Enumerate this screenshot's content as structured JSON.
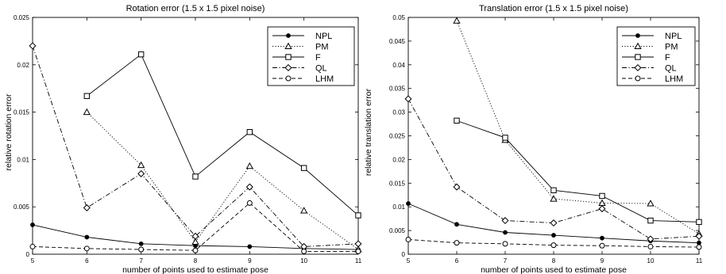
{
  "chart_data": [
    {
      "type": "line",
      "title": "Rotation error (1.5 x 1.5 pixel noise)",
      "xlabel": "number of points used to estimate pose",
      "ylabel": "relative rotation error",
      "xlim": [
        5,
        11
      ],
      "ylim": [
        0,
        0.025
      ],
      "xticks": [
        "5",
        "6",
        "7",
        "8",
        "9",
        "10",
        "11"
      ],
      "yticks": [
        "0",
        "0.005",
        "0.01",
        "0.015",
        "0.02",
        "0.025"
      ],
      "grid": false,
      "legend_position": "top-right",
      "series": [
        {
          "name": "NPL",
          "x": [
            5,
            6,
            7,
            8,
            9,
            10,
            11
          ],
          "values": [
            0.0031,
            0.0018,
            0.0011,
            0.0009,
            0.0008,
            0.0006,
            0.0005
          ]
        },
        {
          "name": "PM",
          "x": [
            6,
            7,
            8,
            9,
            10,
            11
          ],
          "values": [
            0.015,
            0.0094,
            0.0013,
            0.0093,
            0.0046,
            0.0005
          ]
        },
        {
          "name": "F",
          "x": [
            6,
            7,
            8,
            9,
            10,
            11
          ],
          "values": [
            0.0167,
            0.0211,
            0.0082,
            0.0129,
            0.0091,
            0.0041
          ]
        },
        {
          "name": "QL",
          "x": [
            5,
            6,
            7,
            8,
            9,
            10,
            11
          ],
          "values": [
            0.022,
            0.0049,
            0.0085,
            0.0019,
            0.0071,
            0.0008,
            0.0011
          ]
        },
        {
          "name": "LHM",
          "x": [
            5,
            6,
            7,
            8,
            9,
            10,
            11
          ],
          "values": [
            0.0008,
            0.0006,
            0.0005,
            0.0004,
            0.0054,
            0.0003,
            0.0003
          ]
        }
      ]
    },
    {
      "type": "line",
      "title": "Translation error (1.5 x 1.5 pixel noise)",
      "xlabel": "number of points used to estimate pose",
      "ylabel": "relative translation error",
      "xlim": [
        5,
        11
      ],
      "ylim": [
        0,
        0.05
      ],
      "xticks": [
        "5",
        "6",
        "7",
        "8",
        "9",
        "10",
        "11"
      ],
      "yticks": [
        "0",
        "0.005",
        "0.01",
        "0.015",
        "0.02",
        "0.025",
        "0.03",
        "0.035",
        "0.04",
        "0.045",
        "0.05"
      ],
      "grid": false,
      "legend_position": "top-right",
      "series": [
        {
          "name": "NPL",
          "x": [
            5,
            6,
            7,
            8,
            9,
            10,
            11
          ],
          "values": [
            0.0107,
            0.0063,
            0.0046,
            0.004,
            0.0034,
            0.0028,
            0.0024
          ]
        },
        {
          "name": "PM",
          "x": [
            6,
            7,
            8,
            9,
            10,
            11
          ],
          "values": [
            0.0493,
            0.0241,
            0.0117,
            0.0108,
            0.0107,
            0.0043
          ]
        },
        {
          "name": "F",
          "x": [
            6,
            7,
            8,
            9,
            10,
            11
          ],
          "values": [
            0.0282,
            0.0246,
            0.0135,
            0.0123,
            0.0071,
            0.0068
          ]
        },
        {
          "name": "QL",
          "x": [
            5,
            6,
            7,
            8,
            9,
            10,
            11
          ],
          "values": [
            0.0328,
            0.0142,
            0.0071,
            0.0066,
            0.0096,
            0.0032,
            0.0038
          ]
        },
        {
          "name": "LHM",
          "x": [
            5,
            6,
            7,
            8,
            9,
            10,
            11
          ],
          "values": [
            0.0031,
            0.0024,
            0.0022,
            0.0019,
            0.0018,
            0.0016,
            0.0015
          ]
        }
      ]
    }
  ],
  "style": {
    "line_color": "#000000",
    "series_dash": {
      "NPL": "",
      "PM": "1.2,2.2",
      "F": "",
      "QL": "6,2.5,1.2,2.5",
      "LHM": "5,3"
    },
    "series_marker": {
      "NPL": "filled-circle",
      "PM": "triangle",
      "F": "square",
      "QL": "diamond",
      "LHM": "circle"
    }
  }
}
